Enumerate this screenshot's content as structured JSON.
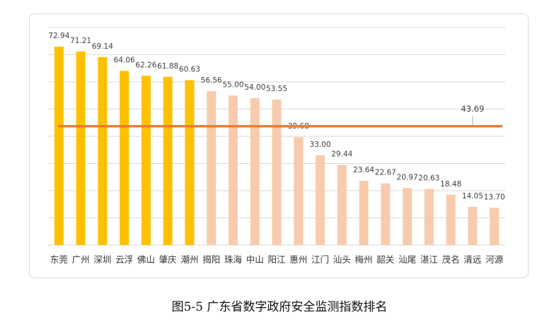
{
  "caption": "图5-5 广东省数字政府安全监测指数排名",
  "chart_data": {
    "type": "bar",
    "categories": [
      "东莞",
      "广州",
      "深圳",
      "云浮",
      "佛山",
      "肇庆",
      "潮州",
      "揭阳",
      "珠海",
      "中山",
      "阳江",
      "惠州",
      "江门",
      "汕头",
      "梅州",
      "韶关",
      "汕尾",
      "湛江",
      "茂名",
      "清远",
      "河源"
    ],
    "values": [
      72.94,
      71.21,
      69.14,
      64.06,
      62.26,
      61.88,
      60.63,
      56.56,
      55.0,
      54.0,
      53.55,
      39.68,
      33.0,
      29.44,
      23.64,
      22.67,
      20.97,
      20.63,
      18.48,
      14.05,
      13.7
    ],
    "value_labels": [
      "72.94",
      "71.21",
      "69.14",
      "64.06",
      "62.26",
      "61.88",
      "60.63",
      "56.56",
      "55.00",
      "54.00",
      "53.55",
      "39.68",
      "33.00",
      "29.44",
      "23.64",
      "22.67",
      "20.97",
      "20.63",
      "18.48",
      "14.05",
      "13.70"
    ],
    "highlight_count": 7,
    "colors": {
      "highlight": "#FFC000",
      "other": "#F8CBAD",
      "average_line": "#ED7D31",
      "grid": "#d9d9d9",
      "label": "#404040"
    },
    "average": {
      "value": 43.69,
      "label": "43.69"
    },
    "ylim": [
      0,
      80
    ],
    "grid": true
  }
}
